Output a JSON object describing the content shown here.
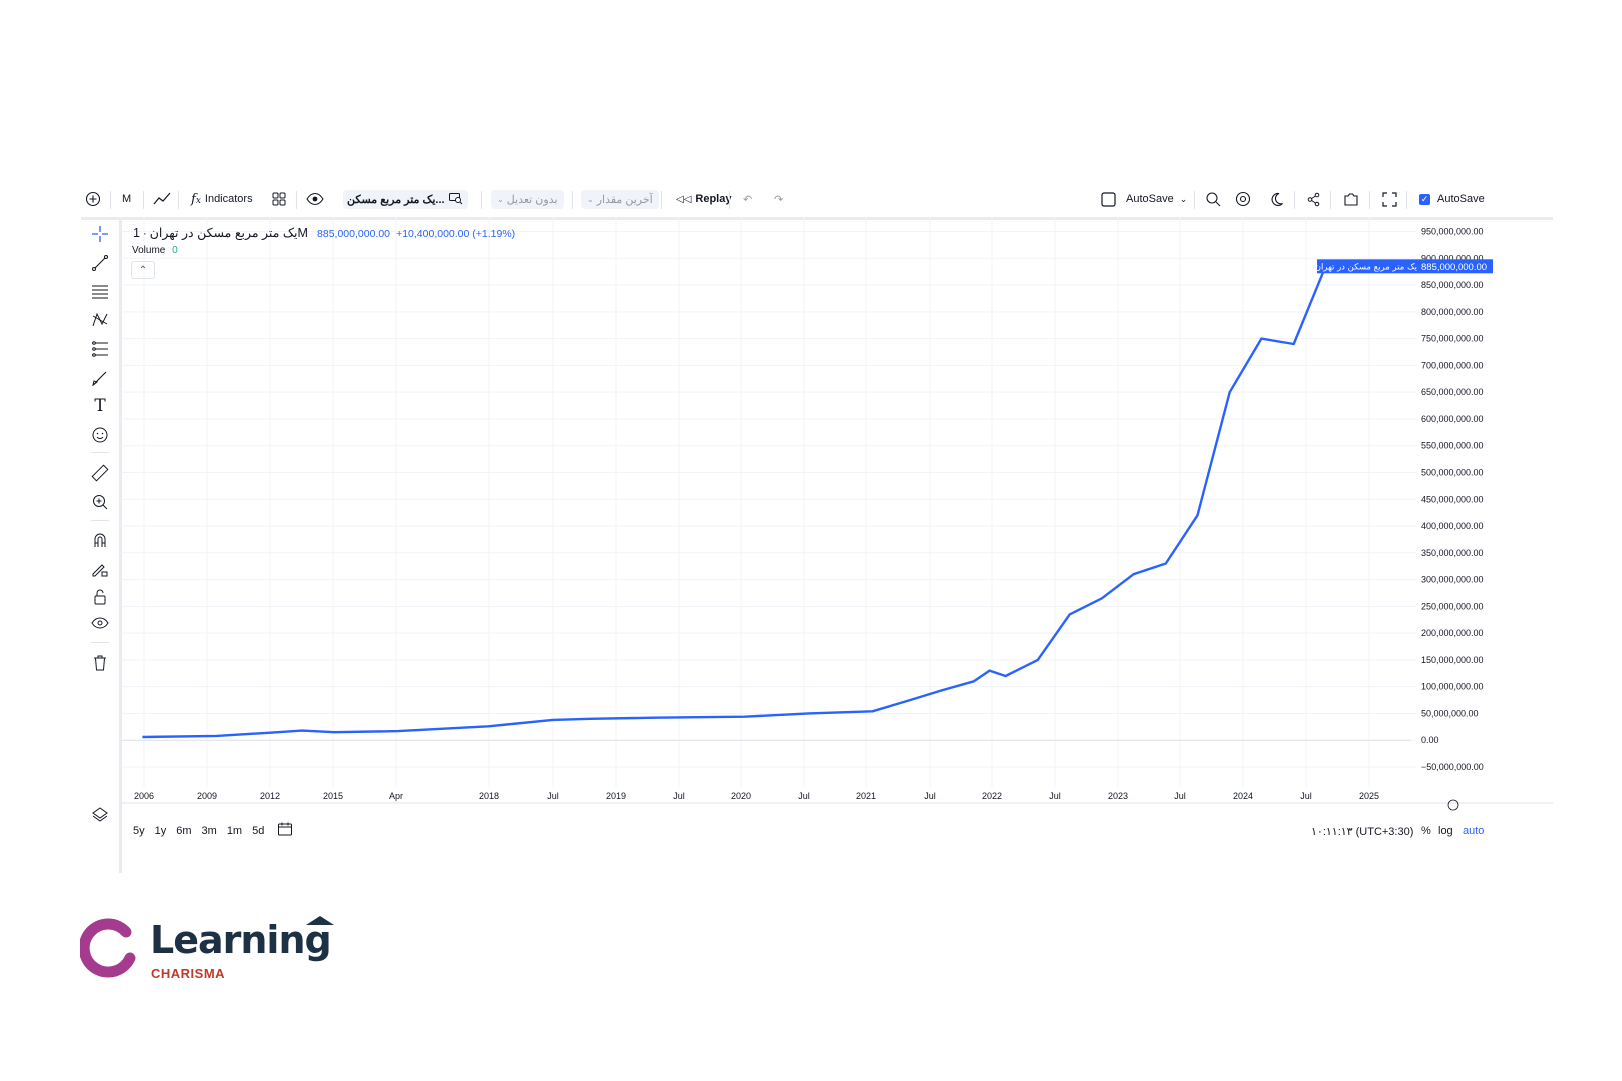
{
  "toolbar": {
    "interval": "M",
    "indicators": "Indicators",
    "symbol_search": "یک متر مربع مسکن...",
    "adjust": "بدون تعدیل",
    "price_type": "آخرین مقدار",
    "replay": "Replay",
    "layout_autosave": "AutoSave",
    "autosave_checkbox": "AutoSave",
    "autosave_checked": true
  },
  "legend": {
    "symbol": "یک متر مربع مسکن در تهران",
    "separator": "·",
    "interval": "1M",
    "last": "885,000,000.00",
    "change": "+10,400,000.00 (+1.19%)",
    "volume_label": "Volume",
    "volume_value": "0"
  },
  "price_tag": {
    "series_label": "یک متر مربع مسکن در تهران",
    "value": "885,000,000.00",
    "color": "#2962ff"
  },
  "bottombar": {
    "ranges": [
      "5y",
      "1y",
      "6m",
      "3m",
      "1m",
      "5d"
    ],
    "clock": "۱۰:۱۱:۱۳ (UTC+3:30)",
    "percent": "%",
    "log": "log",
    "auto": "auto"
  },
  "chart_data": {
    "type": "line",
    "title": "",
    "series": [
      {
        "name": "یک متر مربع مسکن در تهران",
        "color": "#2962ff",
        "x": [
          "2006-01",
          "2007-03",
          "2008-01",
          "2008-07",
          "2009-01",
          "2010-01",
          "2011-06",
          "2012-06",
          "2013-01",
          "2014-01",
          "2015-06",
          "2016-06",
          "2017-06",
          "2018-01",
          "2018-07",
          "2019-01",
          "2019-04",
          "2019-07",
          "2020-01",
          "2020-07",
          "2021-01",
          "2021-07",
          "2022-01",
          "2022-07",
          "2023-01",
          "2023-07",
          "2024-01",
          "2024-07"
        ],
        "y": [
          6000000,
          8000000,
          14000000,
          18000000,
          15000000,
          17000000,
          26000000,
          38000000,
          40000000,
          42000000,
          44000000,
          50000000,
          54000000,
          75000000,
          93000000,
          110000000,
          130000000,
          120000000,
          150000000,
          235000000,
          265000000,
          310000000,
          330000000,
          420000000,
          650000000,
          750000000,
          740000000,
          885000000
        ]
      }
    ],
    "x_ticks": [
      "2006",
      "2009",
      "2012",
      "2015",
      "Apr",
      "2018",
      "Jul",
      "2019",
      "Jul",
      "2020",
      "Jul",
      "2021",
      "Jul",
      "2022",
      "Jul",
      "2023",
      "Jul",
      "2024",
      "Jul",
      "2025"
    ],
    "y_ticks": [
      "950,000,000.00",
      "900,000,000.00",
      "850,000,000.00",
      "800,000,000.00",
      "750,000,000.00",
      "700,000,000.00",
      "650,000,000.00",
      "600,000,000.00",
      "550,000,000.00",
      "500,000,000.00",
      "450,000,000.00",
      "400,000,000.00",
      "350,000,000.00",
      "300,000,000.00",
      "250,000,000.00",
      "200,000,000.00",
      "150,000,000.00",
      "100,000,000.00",
      "50,000,000.00",
      "0.00",
      "−50,000,000.00"
    ],
    "ylim": [
      -50000000,
      950000000
    ],
    "grid": true,
    "scale": "linear"
  },
  "brand": {
    "name": "Learning",
    "sub": "CHARISMA",
    "accent": "#a43b8f",
    "text_color": "#1d3044",
    "sub_color": "#c0392b"
  }
}
